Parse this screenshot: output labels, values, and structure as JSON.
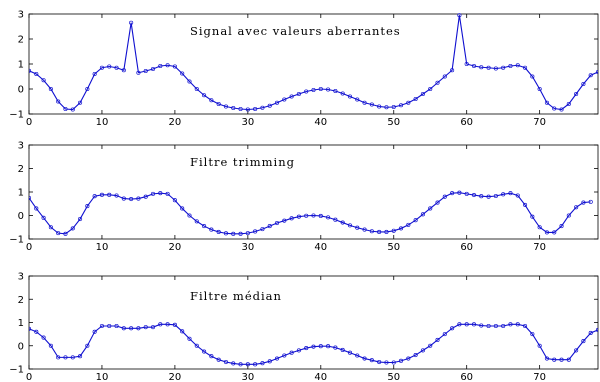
{
  "chart_data": [
    {
      "type": "line",
      "title": "Signal avec valeurs aberrantes",
      "xlim": [
        0,
        78
      ],
      "ylim": [
        -1,
        3
      ],
      "xticks": [
        0,
        10,
        20,
        30,
        40,
        50,
        60,
        70
      ],
      "yticks": [
        -1,
        0,
        1,
        2,
        3
      ],
      "tick_labels_x": [
        "0",
        "10",
        "20",
        "30",
        "40",
        "50",
        "60",
        "70"
      ],
      "tick_labels_y": [
        "−1",
        "0",
        "1",
        "2",
        "3"
      ],
      "grid": false,
      "series": [
        {
          "values": [
            0.73,
            0.6,
            0.35,
            0.0,
            -0.5,
            -0.8,
            -0.82,
            -0.55,
            0.0,
            0.6,
            0.85,
            0.9,
            0.85,
            0.75,
            2.65,
            0.65,
            0.72,
            0.8,
            0.92,
            0.95,
            0.9,
            0.62,
            0.3,
            0.0,
            -0.25,
            -0.45,
            -0.6,
            -0.7,
            -0.76,
            -0.8,
            -0.82,
            -0.8,
            -0.75,
            -0.67,
            -0.55,
            -0.42,
            -0.3,
            -0.2,
            -0.1,
            -0.04,
            0.0,
            -0.02,
            -0.08,
            -0.18,
            -0.3,
            -0.42,
            -0.55,
            -0.62,
            -0.7,
            -0.73,
            -0.72,
            -0.65,
            -0.55,
            -0.4,
            -0.2,
            0.0,
            0.25,
            0.5,
            0.75,
            2.95,
            1.0,
            0.92,
            0.87,
            0.85,
            0.82,
            0.85,
            0.92,
            0.95,
            0.85,
            0.5,
            0.0,
            -0.55,
            -0.78,
            -0.82,
            -0.6,
            -0.2,
            0.2,
            0.55,
            0.68
          ]
        }
      ]
    },
    {
      "type": "line",
      "title": "Filtre trimming",
      "xlim": [
        0,
        78
      ],
      "ylim": [
        -1,
        3
      ],
      "xticks": [
        0,
        10,
        20,
        30,
        40,
        50,
        60,
        70
      ],
      "yticks": [
        -1,
        0,
        1,
        2,
        3
      ],
      "tick_labels_x": [
        "0",
        "10",
        "20",
        "30",
        "40",
        "50",
        "60",
        "70"
      ],
      "tick_labels_y": [
        "−1",
        "0",
        "1",
        "2",
        "3"
      ],
      "grid": false,
      "series": [
        {
          "values": [
            0.75,
            0.3,
            -0.1,
            -0.5,
            -0.75,
            -0.78,
            -0.55,
            -0.15,
            0.4,
            0.82,
            0.88,
            0.88,
            0.85,
            0.72,
            0.7,
            0.72,
            0.8,
            0.92,
            0.95,
            0.92,
            0.65,
            0.3,
            0.0,
            -0.25,
            -0.45,
            -0.6,
            -0.7,
            -0.76,
            -0.78,
            -0.78,
            -0.75,
            -0.68,
            -0.58,
            -0.45,
            -0.32,
            -0.22,
            -0.12,
            -0.05,
            -0.01,
            0.0,
            -0.02,
            -0.08,
            -0.18,
            -0.3,
            -0.42,
            -0.52,
            -0.6,
            -0.67,
            -0.7,
            -0.7,
            -0.65,
            -0.55,
            -0.4,
            -0.2,
            0.05,
            0.3,
            0.55,
            0.8,
            0.95,
            0.97,
            0.92,
            0.87,
            0.82,
            0.8,
            0.83,
            0.9,
            0.95,
            0.85,
            0.45,
            -0.05,
            -0.5,
            -0.72,
            -0.72,
            -0.45,
            0.0,
            0.35,
            0.55,
            0.58
          ]
        }
      ]
    },
    {
      "type": "line",
      "title": "Filtre médian",
      "xlim": [
        0,
        78
      ],
      "ylim": [
        -1,
        3
      ],
      "xticks": [
        0,
        10,
        20,
        30,
        40,
        50,
        60,
        70
      ],
      "yticks": [
        -1,
        0,
        1,
        2,
        3
      ],
      "tick_labels_x": [
        "0",
        "10",
        "20",
        "30",
        "40",
        "50",
        "60",
        "70"
      ],
      "tick_labels_y": [
        "−1",
        "0",
        "1",
        "2",
        "3"
      ],
      "grid": false,
      "series": [
        {
          "values": [
            0.73,
            0.6,
            0.35,
            0.0,
            -0.5,
            -0.5,
            -0.5,
            -0.45,
            0.0,
            0.6,
            0.85,
            0.85,
            0.85,
            0.75,
            0.75,
            0.75,
            0.8,
            0.8,
            0.92,
            0.92,
            0.9,
            0.62,
            0.3,
            0.0,
            -0.25,
            -0.45,
            -0.6,
            -0.7,
            -0.76,
            -0.8,
            -0.8,
            -0.8,
            -0.75,
            -0.67,
            -0.55,
            -0.42,
            -0.3,
            -0.2,
            -0.1,
            -0.04,
            -0.02,
            -0.02,
            -0.08,
            -0.18,
            -0.3,
            -0.42,
            -0.55,
            -0.62,
            -0.7,
            -0.72,
            -0.72,
            -0.65,
            -0.55,
            -0.4,
            -0.2,
            0.0,
            0.25,
            0.5,
            0.75,
            0.92,
            0.92,
            0.92,
            0.87,
            0.85,
            0.85,
            0.85,
            0.92,
            0.92,
            0.85,
            0.5,
            0.0,
            -0.55,
            -0.6,
            -0.6,
            -0.6,
            -0.2,
            0.2,
            0.55,
            0.68
          ]
        }
      ]
    }
  ]
}
